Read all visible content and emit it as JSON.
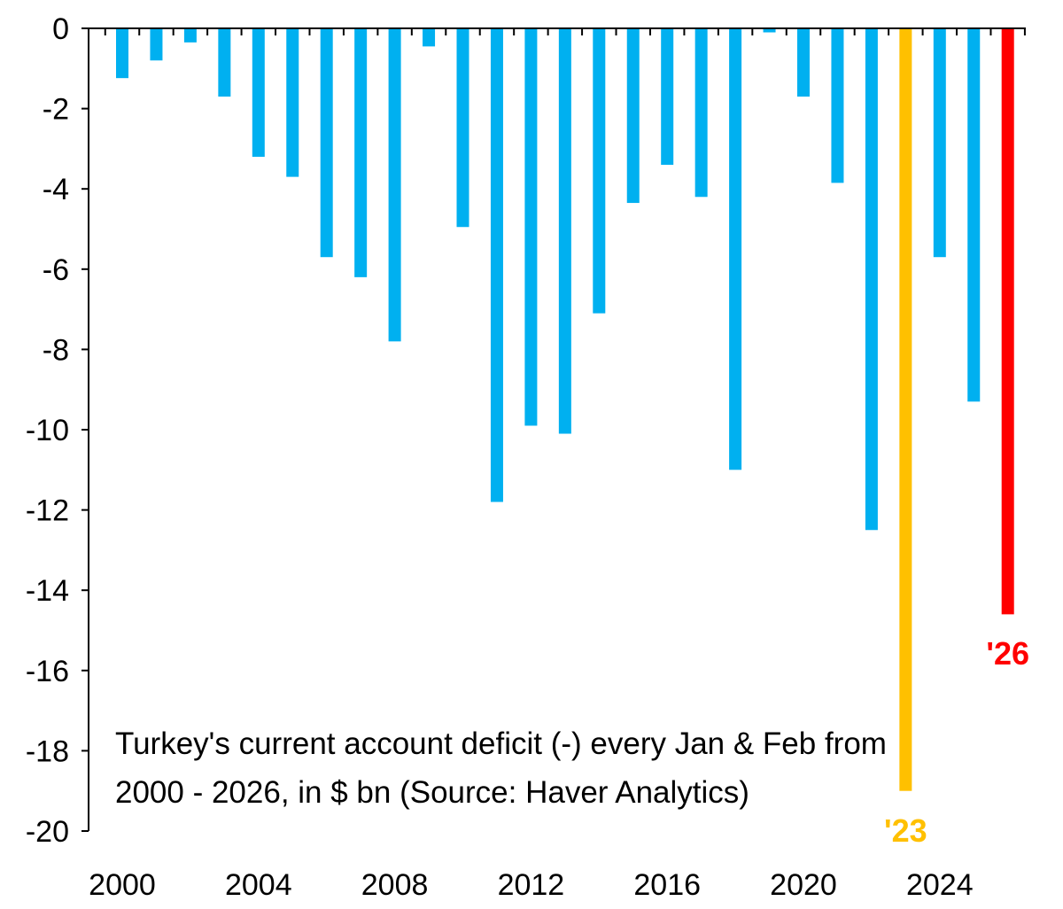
{
  "chart_data": {
    "type": "bar",
    "categories": [
      "2000",
      "2001",
      "2002",
      "2003",
      "2004",
      "2005",
      "2006",
      "2007",
      "2008",
      "2009",
      "2010",
      "2011",
      "2012",
      "2013",
      "2014",
      "2015",
      "2016",
      "2017",
      "2018",
      "2019",
      "2020",
      "2021",
      "2022",
      "2023",
      "2024",
      "2025",
      "2026"
    ],
    "values": [
      -1.24,
      -0.8,
      -0.35,
      -1.7,
      -3.2,
      -3.7,
      -5.7,
      -6.2,
      -7.8,
      -0.45,
      -4.95,
      -11.8,
      -9.9,
      -10.1,
      -7.1,
      -4.35,
      -3.4,
      -4.2,
      -11.0,
      -0.1,
      -1.7,
      -3.85,
      -12.5,
      -19.0,
      -5.7,
      -9.3,
      -14.6
    ],
    "colors": {
      "default": "#00B0F0",
      "2023": "#FFC000",
      "2026": "#FF0000"
    },
    "ylim": [
      -20,
      0
    ],
    "yticks": [
      "0",
      "-2",
      "-4",
      "-6",
      "-8",
      "-10",
      "-12",
      "-14",
      "-16",
      "-18",
      "-20"
    ],
    "xtick_labels": [
      "2000",
      "2004",
      "2008",
      "2012",
      "2016",
      "2020",
      "2024"
    ],
    "annotations": {
      "a2023": "'23",
      "a2026": "'26"
    },
    "note": "Turkey's current account deficit (-) every Jan & Feb from 2000 - 2026, in $ bn (Source: Haver Analytics)",
    "grid": false
  }
}
